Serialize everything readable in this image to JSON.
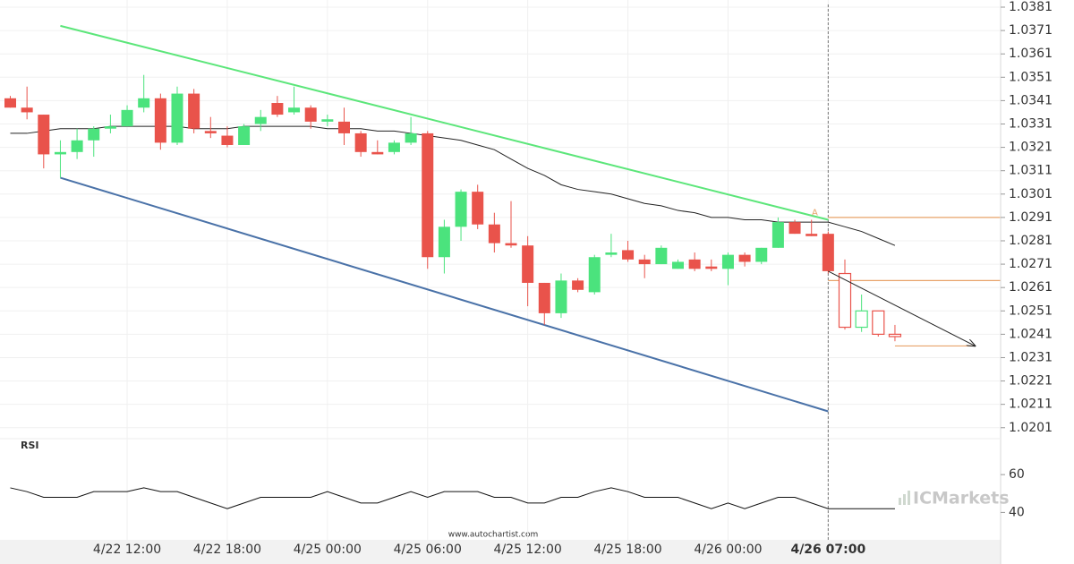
{
  "chart_data": {
    "type": "candlestick",
    "categories": [
      null,
      null,
      null,
      null,
      null,
      null,
      null,
      "4/22 12:00",
      null,
      null,
      null,
      null,
      null,
      "4/22 18:00",
      null,
      null,
      null,
      null,
      null,
      "4/25 00:00",
      null,
      null,
      null,
      null,
      null,
      "4/25 06:00",
      null,
      null,
      null,
      null,
      null,
      "4/25 12:00",
      null,
      null,
      null,
      null,
      null,
      "4/25 18:00",
      null,
      null,
      null,
      null,
      null,
      "4/26 00:00",
      null,
      null,
      null,
      null,
      null,
      "4/26 07:00",
      null,
      null,
      null,
      null
    ],
    "open": [
      1.0342,
      1.0338,
      1.0335,
      1.0318,
      1.0319,
      1.0324,
      1.0329,
      1.033,
      1.0338,
      1.0342,
      1.0323,
      1.0344,
      1.0328,
      1.0326,
      1.0322,
      1.0331,
      1.034,
      1.0336,
      1.0338,
      1.0332,
      1.0332,
      1.0327,
      1.0319,
      1.0319,
      1.0323,
      1.0327,
      1.0274,
      1.0287,
      1.0302,
      1.0288,
      1.028,
      1.0279,
      1.0263,
      1.025,
      1.0264,
      1.0259,
      1.0275,
      1.0277,
      1.0273,
      1.0271,
      1.0269,
      1.0273,
      1.027,
      1.0269,
      1.0275,
      1.0272,
      1.0278,
      1.0289,
      1.0284,
      1.0284,
      1.0267,
      1.0244,
      1.0251,
      1.0241
    ],
    "high": [
      1.0343,
      1.0347,
      1.0335,
      1.0324,
      1.0329,
      1.033,
      1.0335,
      1.0339,
      1.0352,
      1.0344,
      1.0347,
      1.0346,
      1.0334,
      1.033,
      1.0331,
      1.0337,
      1.0343,
      1.0347,
      1.0339,
      1.0335,
      1.0338,
      1.0328,
      1.0324,
      1.0324,
      1.0334,
      1.0328,
      1.029,
      1.0303,
      1.0305,
      1.0293,
      1.0298,
      1.0283,
      1.0263,
      1.0267,
      1.0265,
      1.0275,
      1.0284,
      1.0281,
      1.0275,
      1.0279,
      1.0273,
      1.0276,
      1.0273,
      1.0276,
      1.0276,
      1.0278,
      1.0291,
      1.029,
      1.029,
      1.0285,
      1.0273,
      1.0258,
      1.0251,
      1.0245
    ],
    "low": [
      1.0338,
      1.0333,
      1.0312,
      1.0308,
      1.0316,
      1.0317,
      1.0327,
      1.033,
      1.0336,
      1.032,
      1.0322,
      1.0327,
      1.0325,
      1.0321,
      1.0322,
      1.0328,
      1.0334,
      1.0335,
      1.0329,
      1.033,
      1.0322,
      1.0317,
      1.0318,
      1.0318,
      1.0322,
      1.0269,
      1.0267,
      1.0281,
      1.0286,
      1.0276,
      1.0278,
      1.0253,
      1.0245,
      1.0248,
      1.0259,
      1.0258,
      1.0274,
      1.0272,
      1.0265,
      1.0271,
      1.0269,
      1.0268,
      1.0268,
      1.0262,
      1.027,
      1.0271,
      1.0278,
      1.0284,
      1.0283,
      1.0267,
      1.0243,
      1.0242,
      1.024,
      1.0238
    ],
    "close": [
      1.0338,
      1.0336,
      1.0318,
      1.0319,
      1.0324,
      1.0329,
      1.033,
      1.0337,
      1.0342,
      1.0323,
      1.0344,
      1.0329,
      1.0327,
      1.0322,
      1.033,
      1.0334,
      1.0335,
      1.0338,
      1.0332,
      1.0333,
      1.0327,
      1.0319,
      1.0318,
      1.0323,
      1.0327,
      1.0274,
      1.0287,
      1.0302,
      1.0288,
      1.028,
      1.0279,
      1.0263,
      1.025,
      1.0264,
      1.026,
      1.0274,
      1.0276,
      1.0273,
      1.0271,
      1.0278,
      1.0272,
      1.0269,
      1.0269,
      1.0275,
      1.0272,
      1.0278,
      1.0289,
      1.0284,
      1.0283,
      1.0268,
      1.0244,
      1.0251,
      1.0241,
      1.024
    ],
    "up_color": "#4be37d",
    "down_color": "#e9534b",
    "ylim": [
      1.0197,
      1.0382
    ],
    "yticks": [
      1.0381,
      1.0371,
      1.0361,
      1.0351,
      1.0341,
      1.0331,
      1.0321,
      1.0311,
      1.0301,
      1.0291,
      1.0281,
      1.0271,
      1.0261,
      1.0251,
      1.0241,
      1.0231,
      1.0221,
      1.0211,
      1.0201
    ],
    "grid": true,
    "overlays": [
      {
        "type": "line",
        "color": "#222222",
        "values": [
          1.0327,
          1.0327,
          1.0328,
          1.0329,
          1.0329,
          1.0329,
          1.033,
          1.033,
          1.033,
          1.033,
          1.033,
          1.0329,
          1.0329,
          1.0329,
          1.033,
          1.033,
          1.033,
          1.033,
          1.033,
          1.0329,
          1.0329,
          1.0329,
          1.0328,
          1.0328,
          1.0327,
          1.0326,
          1.0325,
          1.0324,
          1.0322,
          1.032,
          1.0316,
          1.0312,
          1.0309,
          1.0305,
          1.0303,
          1.0302,
          1.0301,
          1.0299,
          1.0297,
          1.0296,
          1.0294,
          1.0293,
          1.0291,
          1.0291,
          1.029,
          1.029,
          1.0289,
          1.0289,
          1.0289,
          1.0289,
          1.0287,
          1.0285,
          1.0282,
          1.0279
        ]
      }
    ],
    "trend_lines": [
      {
        "color": "#5ce67a",
        "x": [
          3,
          49
        ],
        "values": [
          1.0373,
          1.029
        ]
      },
      {
        "color": "#4a72a8",
        "x": [
          3,
          49
        ],
        "values": [
          1.0308,
          1.0208
        ]
      }
    ],
    "levels": [
      {
        "color": "#e8a36a",
        "value": 1.0291,
        "x": [
          49,
          59.3
        ]
      },
      {
        "color": "#e8a36a",
        "value": 1.0264,
        "x": [
          49,
          59.3
        ]
      },
      {
        "color": "#e8a36a",
        "value": 1.0236,
        "x": [
          53,
          57.8
        ]
      }
    ],
    "forecast": {
      "color": "#222222",
      "x": [
        49,
        57.8
      ],
      "values": [
        1.0268,
        1.0236
      ]
    },
    "annotations": [
      {
        "text": "A",
        "x": 48.2,
        "value": 1.0293,
        "color": "#e8a36a"
      }
    ],
    "rsi": {
      "title": "RSI",
      "color": "#111111",
      "values": [
        53,
        51,
        48,
        48,
        48,
        51,
        51,
        51,
        53,
        51,
        51,
        48,
        45,
        42,
        45,
        48,
        48,
        48,
        48,
        51,
        48,
        45,
        45,
        48,
        51,
        48,
        51,
        51,
        51,
        48,
        48,
        45,
        45,
        48,
        48,
        51,
        53,
        51,
        48,
        48,
        48,
        45,
        42,
        45,
        42,
        45,
        48,
        48,
        45,
        42,
        42,
        42,
        42,
        42
      ],
      "ylim": [
        26,
        79
      ],
      "yticks": [
        40,
        60
      ]
    },
    "source": "www.autochartist.com",
    "brand": "ICMarkets"
  }
}
